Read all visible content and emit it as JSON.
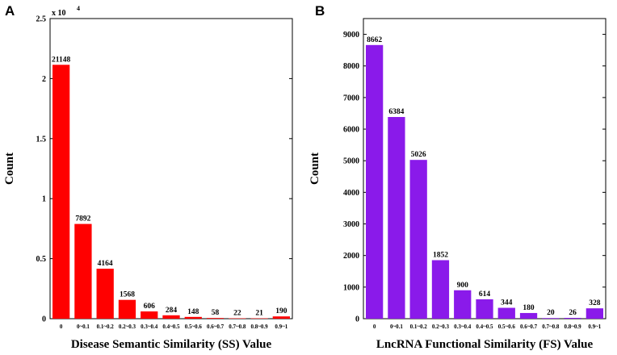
{
  "chart_data": [
    {
      "panel": "A",
      "type": "bar",
      "title": "",
      "xlabel": "Disease Semantic Similarity (SS) Value",
      "ylabel": "Count",
      "exponent_label": "x 10",
      "exponent_power": "4",
      "categories": [
        "0",
        "0~0.1",
        "0.1~0.2",
        "0.2~0.3",
        "0.3~0.4",
        "0.4~0.5",
        "0.5~0.6",
        "0.6~0.7",
        "0.7~0.8",
        "0.8~0.9",
        "0.9~1"
      ],
      "values": [
        21148,
        7892,
        4164,
        1568,
        606,
        284,
        148,
        58,
        22,
        21,
        190
      ],
      "ylim": [
        0,
        25000
      ],
      "yticks": [
        0,
        5000,
        10000,
        15000,
        20000,
        25000
      ],
      "ytick_labels": [
        "0",
        "0.5",
        "1",
        "1.5",
        "2",
        "2.5"
      ],
      "color": "#ff0000"
    },
    {
      "panel": "B",
      "type": "bar",
      "title": "",
      "xlabel": "LncRNA Functional Similarity (FS) Value",
      "ylabel": "Count",
      "categories": [
        "0",
        "0~0.1",
        "0.1~0.2",
        "0.2~0.3",
        "0.3~0.4",
        "0.4~0.5",
        "0.5~0.6",
        "0.6~0.7",
        "0.7~0.8",
        "0.8~0.9",
        "0.9~1"
      ],
      "values": [
        8662,
        6384,
        5026,
        1852,
        900,
        614,
        344,
        180,
        20,
        26,
        328
      ],
      "ylim": [
        0,
        9500
      ],
      "yticks": [
        0,
        1000,
        2000,
        3000,
        4000,
        5000,
        6000,
        7000,
        8000,
        9000
      ],
      "ytick_labels": [
        "0",
        "1000",
        "2000",
        "3000",
        "4000",
        "5000",
        "6000",
        "7000",
        "8000",
        "9000"
      ],
      "color": "#8a1aea"
    }
  ]
}
